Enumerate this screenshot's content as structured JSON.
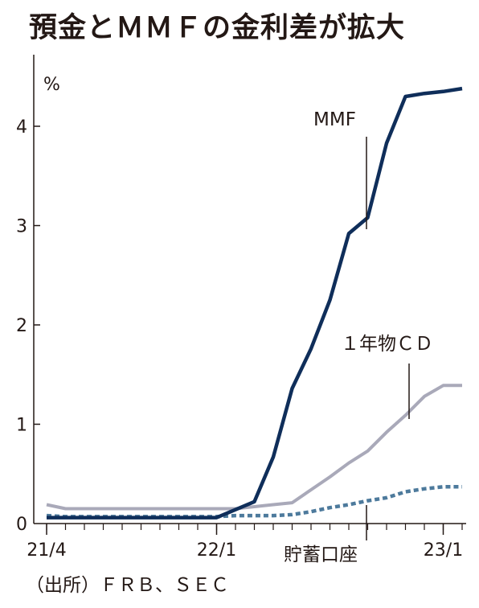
{
  "title": "預金とＭＭＦの金利差が拡大",
  "source": "（出所）ＦＲＢ、ＳＥＣ",
  "colors": {
    "mmf": "#0f2e5a",
    "cd": "#a9a9b9",
    "savings": "#4d7a9c",
    "axis": "#231815"
  },
  "chart_data": {
    "type": "line",
    "title": "預金とＭＭＦの金利差が拡大",
    "ylabel": "%",
    "ylim": [
      0,
      4.3
    ],
    "yticks": [
      0,
      1,
      2,
      3,
      4
    ],
    "x_tick_labels": [
      "21/4",
      "22/1",
      "23/1"
    ],
    "x_tick_months": [
      0,
      9,
      21
    ],
    "x_months": [
      0,
      1,
      2,
      3,
      4,
      5,
      6,
      7,
      8,
      9,
      10,
      11,
      12,
      13,
      14,
      15,
      16,
      17,
      18,
      19,
      20,
      21,
      22
    ],
    "series": [
      {
        "name": "MMF",
        "style": "solid",
        "values": [
          0.06,
          0.06,
          0.06,
          0.06,
          0.06,
          0.06,
          0.06,
          0.06,
          0.06,
          0.06,
          0.14,
          0.22,
          0.67,
          1.36,
          1.76,
          2.25,
          2.92,
          3.08,
          3.83,
          4.3,
          4.33,
          4.35,
          4.38
        ]
      },
      {
        "name": "１年物ＣＤ",
        "style": "solid",
        "values": [
          0.19,
          0.15,
          0.15,
          0.15,
          0.15,
          0.15,
          0.15,
          0.15,
          0.15,
          0.15,
          0.15,
          0.17,
          0.19,
          0.21,
          0.34,
          0.47,
          0.61,
          0.73,
          0.92,
          1.09,
          1.28,
          1.39,
          1.39
        ]
      },
      {
        "name": "貯蓄口座",
        "style": "dotted",
        "values": [
          0.08,
          0.07,
          0.07,
          0.07,
          0.07,
          0.07,
          0.07,
          0.07,
          0.07,
          0.07,
          0.08,
          0.08,
          0.08,
          0.09,
          0.12,
          0.16,
          0.19,
          0.23,
          0.26,
          0.32,
          0.35,
          0.37,
          0.37
        ]
      }
    ],
    "annotations": [
      "MMF",
      "１年物ＣＤ",
      "貯蓄口座"
    ],
    "grid": false,
    "legend": "inline-labels"
  }
}
